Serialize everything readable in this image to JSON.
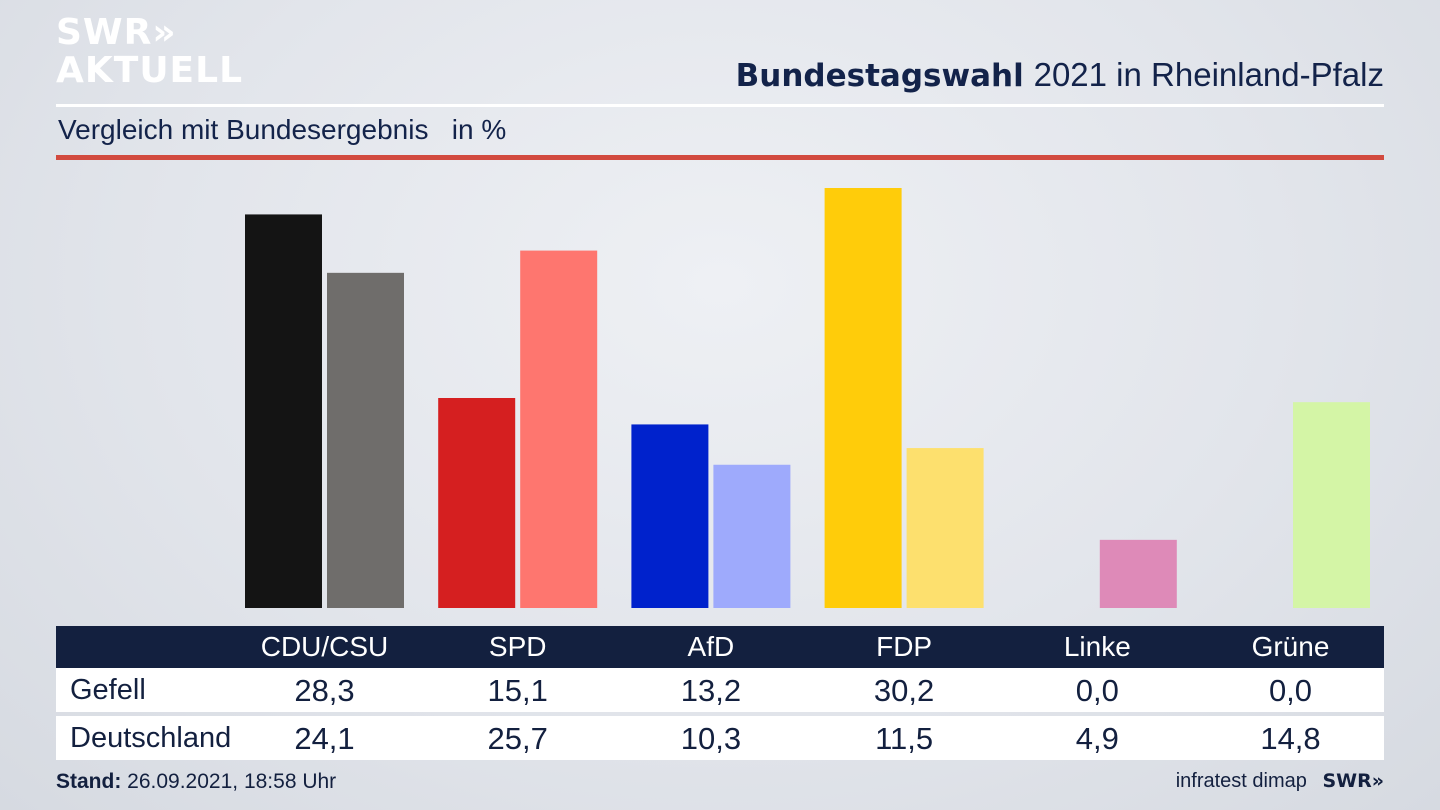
{
  "branding": {
    "logo_line1": "SWR»",
    "logo_line2": "AKTUELL",
    "footer_logo": "SWR»"
  },
  "header": {
    "title_bold": "Bundestagswahl",
    "title_rest": "2021 in Rheinland-Pfalz",
    "subtitle": "Vergleich mit Bundesergebnis   in %"
  },
  "footer": {
    "stand_label": "Stand:",
    "stand_value": "26.09.2021, 18:58 Uhr",
    "source": "infratest dimap"
  },
  "colors": {
    "accent_red": "#d24a3f",
    "table_header_bg": "#13203f"
  },
  "chart_data": {
    "type": "bar",
    "categories": [
      "CDU/CSU",
      "SPD",
      "AfD",
      "FDP",
      "Linke",
      "Grüne"
    ],
    "series": [
      {
        "name": "Gefell",
        "values": [
          28.3,
          15.1,
          13.2,
          30.2,
          0.0,
          0.0
        ],
        "colors": [
          "#141414",
          "#d51f20",
          "#0022cc",
          "#ffcc0a",
          "#d94b9b",
          "#59b623"
        ]
      },
      {
        "name": "Deutschland",
        "values": [
          24.1,
          25.7,
          10.3,
          11.5,
          4.9,
          14.8
        ],
        "colors": [
          "#6f6d6b",
          "#fe766f",
          "#9eaafc",
          "#fde06e",
          "#de8ab8",
          "#d4f5a6"
        ]
      }
    ],
    "value_labels": {
      "Gefell": [
        "28,3",
        "15,1",
        "13,2",
        "30,2",
        "0,0",
        "0,0"
      ],
      "Deutschland": [
        "24,1",
        "25,7",
        "10,3",
        "11,5",
        "4,9",
        "14,8"
      ]
    },
    "ylim": [
      0,
      30.2
    ],
    "grid": false,
    "legend": "table-below"
  }
}
